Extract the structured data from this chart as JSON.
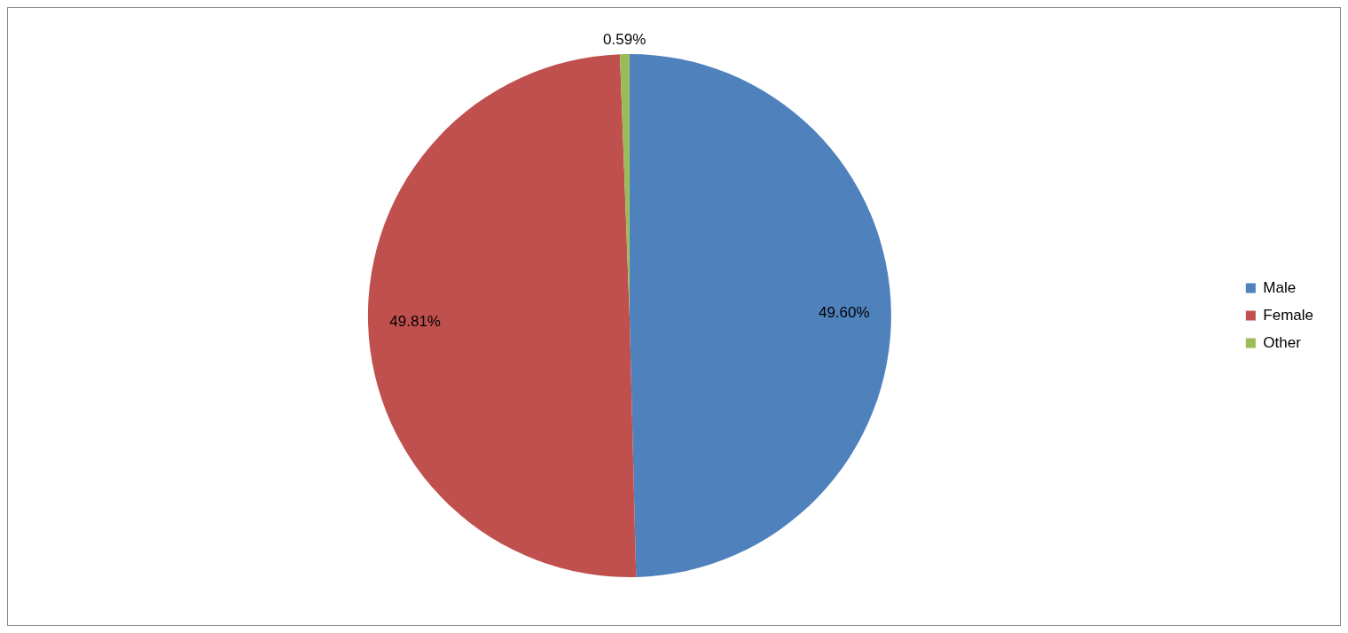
{
  "chart_data": {
    "type": "pie",
    "categories": [
      "Male",
      "Female",
      "Other"
    ],
    "values": [
      49.6,
      49.81,
      0.59
    ],
    "colors": [
      "#4f81bd",
      "#c0504d",
      "#9bbb59"
    ],
    "value_labels": [
      "49.60%",
      "49.81%",
      "0.59%"
    ],
    "legend": "right"
  }
}
